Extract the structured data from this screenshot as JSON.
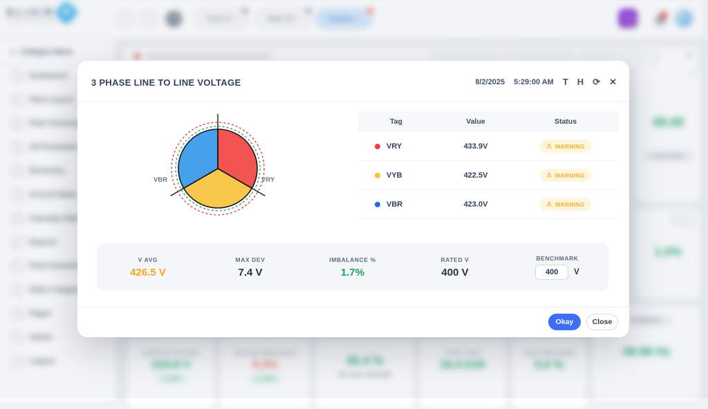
{
  "modal": {
    "title": "3 PHASE LINE TO LINE VOLTAGE",
    "date": "8/2/2025",
    "time": "5:29:00 AM",
    "header_icons": {
      "text_tool": "T",
      "history": "H",
      "refresh": "⟳",
      "close": "✕"
    },
    "table": {
      "columns": [
        "Tag",
        "Value",
        "Status"
      ],
      "rows": [
        {
          "tag": "VRY",
          "dot_color": "#f2413d",
          "value": "433.9V",
          "status": "WARNING"
        },
        {
          "tag": "VYB",
          "dot_color": "#fbc136",
          "value": "422.5V",
          "status": "WARNING"
        },
        {
          "tag": "VBR",
          "dot_color": "#2b63f5",
          "value": "423.0V",
          "status": "WARNING"
        }
      ],
      "warning_icon": "⚠"
    },
    "stats": [
      {
        "label": "V AVG",
        "value": "426.5 V",
        "color": "#f5a623"
      },
      {
        "label": "MAX DEV",
        "value": "7.4 V",
        "color": "#27324a"
      },
      {
        "label": "IMBALANCE %",
        "value": "1.7%",
        "color": "#1da35c"
      },
      {
        "label": "RATED V",
        "value": "400 V",
        "color": "#27324a"
      }
    ],
    "benchmark": {
      "label": "BENCHMARK",
      "value": "400",
      "unit": "V"
    },
    "buttons": {
      "okay": "Okay",
      "close": "Close"
    }
  },
  "chart_data": {
    "type": "pie",
    "title": "3 PHASE LINE TO LINE VOLTAGE",
    "layout": "three equal 120° phasor sectors starting at 12 o'clock, black radial axis lines, green dashed nominal ring and red dashed limit ring outside the pie",
    "unit": "V",
    "segments": [
      {
        "label": "VRY",
        "value": 433.9,
        "color": "#f2544f",
        "status": "WARNING"
      },
      {
        "label": "VYB",
        "value": 422.5,
        "color": "#f8c84c",
        "status": "WARNING"
      },
      {
        "label": "VBR",
        "value": 423.0,
        "color": "#47a0ea",
        "status": "WARNING"
      }
    ],
    "rings": {
      "inner_dashed": "#2e9e44",
      "outer_dashed": "#e53935"
    },
    "summary": {
      "v_avg": 426.5,
      "max_dev": 7.4,
      "imbalance_pct": 1.7,
      "rated_v": 400,
      "benchmark_v": 400
    }
  },
  "background": {
    "topbar": {
      "logo_text": "ELIXIR",
      "logo_sub": "ENERGY MANAGEMENT",
      "nav_buttons": [
        "‹",
        "›",
        "⟳"
      ],
      "pills": [
        {
          "label": "Zone 01",
          "chevron": "▾"
        },
        {
          "label": "Meter 02",
          "chevron": "▾"
        },
        {
          "label": "Realtime",
          "chevron": "▾"
        }
      ]
    },
    "sidebar": {
      "collapse_label": "Collapse Menu",
      "collapse_icon": "«",
      "items": [
        {
          "label": "Dashboard"
        },
        {
          "label": "Plant Layout"
        },
        {
          "label": "Plant Summary"
        },
        {
          "label": "All Parameters"
        },
        {
          "label": "Electricity"
        },
        {
          "label": "Ground Water"
        },
        {
          "label": "Calculate Water"
        },
        {
          "label": "Reports"
        },
        {
          "label": "Plant Schedule"
        },
        {
          "label": "Help & Support"
        },
        {
          "label": "Pages"
        },
        {
          "label": "Admin"
        },
        {
          "label": "Logout"
        }
      ]
    },
    "panel": {
      "close_icon": "✕",
      "expand_icon": "⤢"
    },
    "tiles": [
      {
        "label": "AVERAGE VOLTAGE",
        "value": "210.6 V",
        "badge": "▲ 0.2%"
      },
      {
        "label": "VOLTAGE IMBALANCE",
        "value": "5.2%",
        "badge": "▲ 0.4%"
      },
      {
        "value": "45.4 %",
        "sub": "BT Load : 20.44 kW"
      },
      {
        "label": "TOTAL LOAD",
        "value": "34.4 kVA"
      },
      {
        "label": "LOAD IMBALANCE",
        "value": "5.6 %"
      }
    ],
    "right_cards": {
      "card_a_value": "49.00",
      "card_a_pill": "Load Trend",
      "card_b_value": "1.0%",
      "freq_title": "Frequency",
      "freq_value": "49.98 Hz"
    }
  }
}
